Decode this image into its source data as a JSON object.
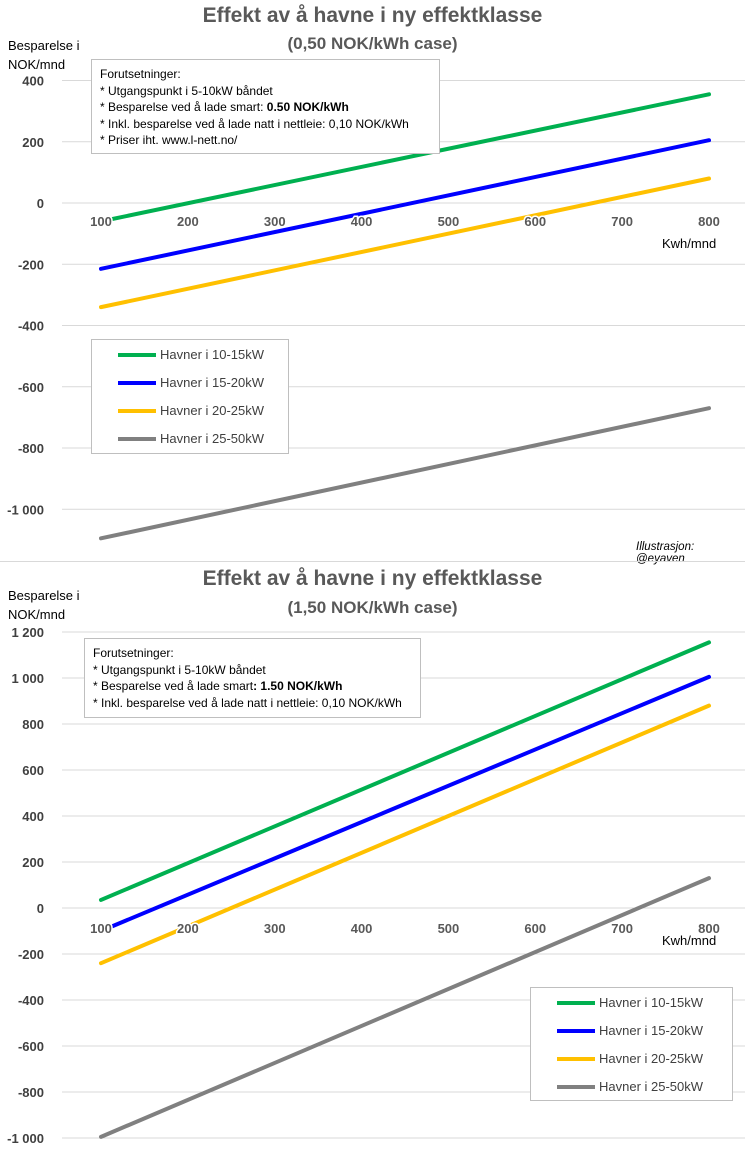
{
  "chart_data": [
    {
      "type": "line",
      "title": "Effekt av å havne i ny effektklasse",
      "subtitle": "(0,50 NOK/kWh case)",
      "ylabel": "Besparelse i NOK/mnd",
      "xlabel": "Kwh/mnd",
      "x": [
        100,
        800
      ],
      "x_ticks": [
        "100",
        "200",
        "300",
        "400",
        "500",
        "600",
        "700",
        "800"
      ],
      "y_ticks": [
        "400",
        "200",
        "0",
        "-200",
        "-400",
        "-600",
        "-800",
        "-1 000"
      ],
      "y_tick_values": [
        400,
        200,
        0,
        -200,
        -400,
        -600,
        -800,
        -1000
      ],
      "ylim": [
        -1100,
        420
      ],
      "xlim": [
        100,
        800
      ],
      "grid": true,
      "legend_position": "middle-left",
      "series": [
        {
          "name": "Havner i 10-15kW",
          "color": "#00b050",
          "values": [
            -60,
            355
          ]
        },
        {
          "name": "Havner i 15-20kW",
          "color": "#0000ff",
          "values": [
            -215,
            205
          ]
        },
        {
          "name": "Havner i 20-25kW",
          "color": "#ffc000",
          "values": [
            -340,
            80
          ]
        },
        {
          "name": "Havner i 25-50kW",
          "color": "#808080",
          "values": [
            -1095,
            -670
          ]
        }
      ],
      "assumptions_title": "Forutsetninger:",
      "assumptions": [
        {
          "text": "* Utgangspunkt i 5-10kW båndet",
          "bold": ""
        },
        {
          "text": "* Besparelse ved å lade smart: ",
          "bold": "0.50 NOK/kWh"
        },
        {
          "text": "* Inkl. besparelse ved å lade natt i nettleie: 0,10 NOK/kWh",
          "bold": ""
        },
        {
          "text": "* Priser iht. www.l-nett.no/",
          "bold": ""
        }
      ],
      "annotation": "Illustrasjon: @eyaven"
    },
    {
      "type": "line",
      "title": "Effekt av å havne i ny effektklasse",
      "subtitle": "(1,50 NOK/kWh case)",
      "ylabel": "Besparelse i NOK/mnd",
      "xlabel": "Kwh/mnd",
      "x": [
        100,
        800
      ],
      "x_ticks": [
        "100",
        "200",
        "300",
        "400",
        "500",
        "600",
        "700",
        "800"
      ],
      "y_ticks": [
        "1 200",
        "1 000",
        "800",
        "600",
        "400",
        "200",
        "0",
        "-200",
        "-400",
        "-600",
        "-800",
        "-1 000"
      ],
      "y_tick_values": [
        1200,
        1000,
        800,
        600,
        400,
        200,
        0,
        -200,
        -400,
        -600,
        -800,
        -1000
      ],
      "ylim": [
        -1000,
        1200
      ],
      "xlim": [
        100,
        800
      ],
      "grid": true,
      "legend_position": "bottom-right",
      "series": [
        {
          "name": "Havner i 10-15kW",
          "color": "#00b050",
          "values": [
            35,
            1155
          ]
        },
        {
          "name": "Havner i 15-20kW",
          "color": "#0000ff",
          "values": [
            -100,
            1005
          ]
        },
        {
          "name": "Havner i 20-25kW",
          "color": "#ffc000",
          "values": [
            -240,
            880
          ]
        },
        {
          "name": "Havner i 25-50kW",
          "color": "#808080",
          "values": [
            -995,
            130
          ]
        }
      ],
      "assumptions_title": "Forutsetninger:",
      "assumptions": [
        {
          "text": "* Utgangspunkt i 5-10kW båndet",
          "bold": ""
        },
        {
          "text": "* Besparelse ved å lade smart",
          "bold": ": 1.50 NOK/kWh"
        },
        {
          "text": "* Inkl. besparelse ved å lade natt i nettleie: 0,10 NOK/kWh",
          "bold": ""
        }
      ],
      "annotation": ""
    }
  ]
}
